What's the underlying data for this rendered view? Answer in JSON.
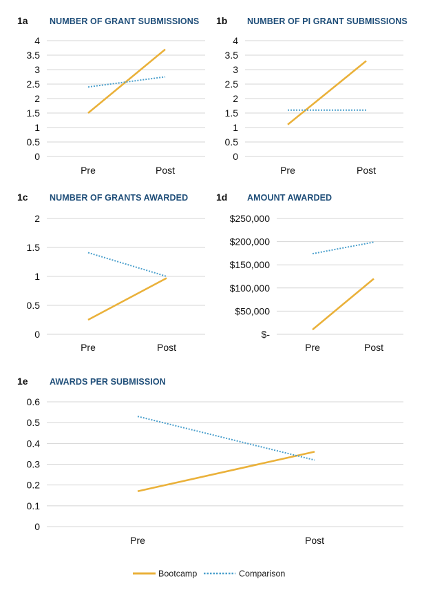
{
  "style": {
    "title_color": "#1f4e79",
    "bootcamp_color": "#eab13a",
    "comparison_color": "#4a9fcc",
    "grid_color": "#d4d4d4"
  },
  "legend": {
    "position": "bottom-center",
    "items": [
      {
        "label": "Bootcamp",
        "line": "solid",
        "color": "#eab13a"
      },
      {
        "label": "Comparison",
        "line": "dotted",
        "color": "#4a9fcc"
      }
    ]
  },
  "chart_data": [
    {
      "id": "1a",
      "type": "line",
      "title": "NUMBER OF GRANT SUBMISSIONS",
      "categories": [
        "Pre",
        "Post"
      ],
      "yticks": [
        "0",
        "0.5",
        "1",
        "1.5",
        "2",
        "2.5",
        "3",
        "3.5",
        "4"
      ],
      "ylim": [
        0,
        4
      ],
      "grid": true,
      "series": [
        {
          "name": "Bootcamp",
          "values": [
            1.5,
            3.7
          ]
        },
        {
          "name": "Comparison",
          "values": [
            2.4,
            2.75
          ]
        }
      ]
    },
    {
      "id": "1b",
      "type": "line",
      "title": "NUMBER OF PI GRANT SUBMISSIONS",
      "categories": [
        "Pre",
        "Post"
      ],
      "yticks": [
        "0",
        "0.5",
        "1",
        "1.5",
        "2",
        "2.5",
        "3",
        "3.5",
        "4"
      ],
      "ylim": [
        0,
        4
      ],
      "grid": true,
      "series": [
        {
          "name": "Bootcamp",
          "values": [
            1.1,
            3.3
          ]
        },
        {
          "name": "Comparison",
          "values": [
            1.6,
            1.6
          ]
        }
      ]
    },
    {
      "id": "1c",
      "type": "line",
      "title": "NUMBER OF GRANTS AWARDED",
      "categories": [
        "Pre",
        "Post"
      ],
      "yticks": [
        "0",
        "0.5",
        "1",
        "1.5",
        "2"
      ],
      "ylim": [
        0,
        2
      ],
      "grid": true,
      "series": [
        {
          "name": "Bootcamp",
          "values": [
            0.25,
            0.97
          ]
        },
        {
          "name": "Comparison",
          "values": [
            1.41,
            1.0
          ]
        }
      ]
    },
    {
      "id": "1d",
      "type": "line",
      "title": "AMOUNT AWARDED",
      "categories": [
        "Pre",
        "Post"
      ],
      "yticks": [
        "$-",
        "$50,000",
        "$100,000",
        "$150,000",
        "$200,000",
        "$250,000"
      ],
      "ylim": [
        0,
        250000
      ],
      "grid": true,
      "series": [
        {
          "name": "Bootcamp",
          "values": [
            10000,
            120000
          ]
        },
        {
          "name": "Comparison",
          "values": [
            174000,
            199000
          ]
        }
      ]
    },
    {
      "id": "1e",
      "type": "line",
      "title": "AWARDS PER SUBMISSION",
      "categories": [
        "Pre",
        "Post"
      ],
      "yticks": [
        "0",
        "0.1",
        "0.2",
        "0.3",
        "0.4",
        "0.5",
        "0.6"
      ],
      "ylim": [
        0,
        0.6
      ],
      "grid": true,
      "series": [
        {
          "name": "Bootcamp",
          "values": [
            0.17,
            0.36
          ]
        },
        {
          "name": "Comparison",
          "values": [
            0.53,
            0.32
          ]
        }
      ]
    }
  ]
}
